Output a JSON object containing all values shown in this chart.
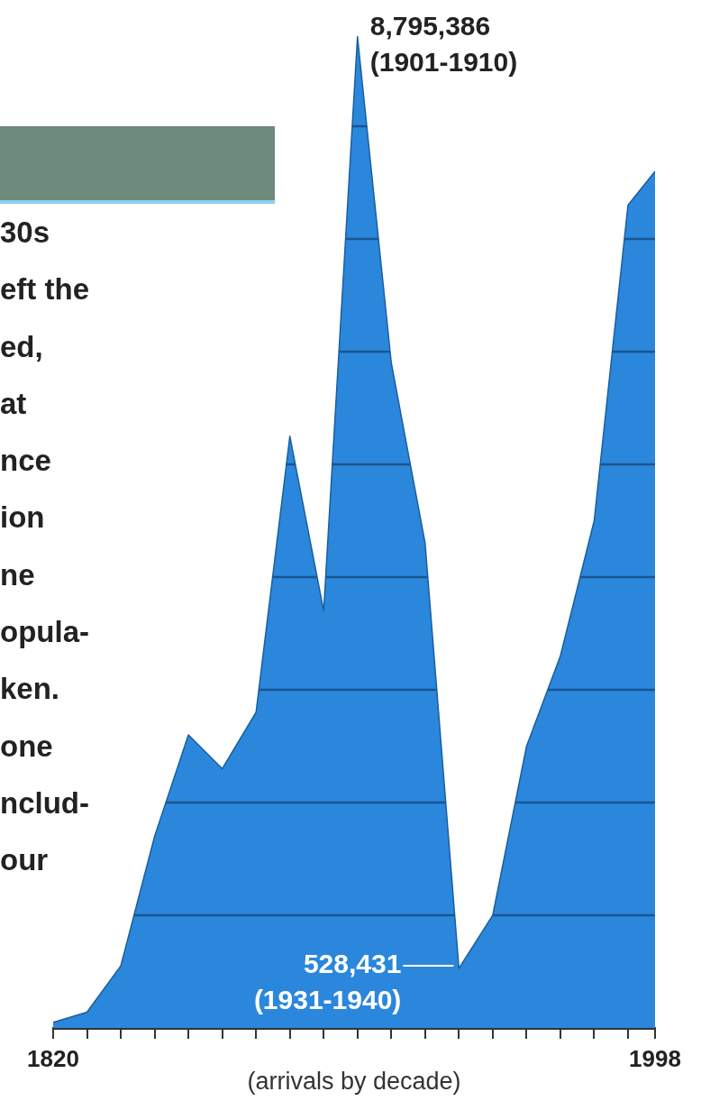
{
  "chart_data": {
    "type": "area",
    "xlabel": "(arrivals by decade)",
    "x": [
      1820,
      1830,
      1840,
      1850,
      1860,
      1870,
      1880,
      1890,
      1900,
      1910,
      1920,
      1930,
      1940,
      1950,
      1960,
      1970,
      1980,
      1990,
      1998
    ],
    "series": [
      {
        "color": "#2b87db",
        "values": [
          50000,
          140000,
          550000,
          1700000,
          2600000,
          2300000,
          2800000,
          5250000,
          3700000,
          8795386,
          5900000,
          4300000,
          528431,
          1000000,
          2500000,
          3300000,
          4500000,
          7300000,
          7600000
        ],
        "value_labels": [
          null,
          null,
          null,
          null,
          null,
          null,
          null,
          null,
          null,
          "8,795,386",
          null,
          null,
          "528,431",
          null,
          null,
          null,
          null,
          null,
          null
        ]
      }
    ],
    "xlim": [
      1820,
      1998
    ],
    "xticks": [
      {
        "value": 1820,
        "label": "1820"
      },
      {
        "value": 1830,
        "label": null
      },
      {
        "value": 1840,
        "label": null
      },
      {
        "value": 1850,
        "label": null
      },
      {
        "value": 1860,
        "label": null
      },
      {
        "value": 1870,
        "label": null
      },
      {
        "value": 1880,
        "label": null
      },
      {
        "value": 1890,
        "label": null
      },
      {
        "value": 1900,
        "label": null
      },
      {
        "value": 1910,
        "label": null
      },
      {
        "value": 1920,
        "label": null
      },
      {
        "value": 1930,
        "label": null
      },
      {
        "value": 1940,
        "label": null
      },
      {
        "value": 1950,
        "label": null
      },
      {
        "value": 1960,
        "label": null
      },
      {
        "value": 1970,
        "label": null
      },
      {
        "value": 1980,
        "label": null
      },
      {
        "value": 1990,
        "label": null
      },
      {
        "value": 1998,
        "label": "1998"
      }
    ],
    "ref_lines": [
      {
        "axis": "y",
        "value": 1000000,
        "color": "#1a5590"
      },
      {
        "axis": "y",
        "value": 2000000,
        "color": "#1a5590"
      },
      {
        "axis": "y",
        "value": 3000000,
        "color": "#1a5590"
      },
      {
        "axis": "y",
        "value": 4000000,
        "color": "#1a5590"
      },
      {
        "axis": "y",
        "value": 5000000,
        "color": "#1a5590"
      },
      {
        "axis": "y",
        "value": 6000000,
        "color": "#1a5590"
      },
      {
        "axis": "y",
        "value": 7000000,
        "color": "#1a5590"
      },
      {
        "axis": "y",
        "value": 8000000,
        "color": "#1a5590"
      }
    ],
    "tick_labels": "x",
    "legend": false,
    "annotations": [
      "30s",
      "eft the",
      "ed,",
      "at",
      "nce",
      "ion",
      "ne",
      "opula-",
      "ken.",
      "one",
      "nclud-",
      "our",
      {
        "text": "(1901-1910)",
        "x": 1910,
        "y": 8795386
      },
      {
        "text": "(1931-1940)",
        "x": 1940,
        "y": 528431
      }
    ]
  }
}
